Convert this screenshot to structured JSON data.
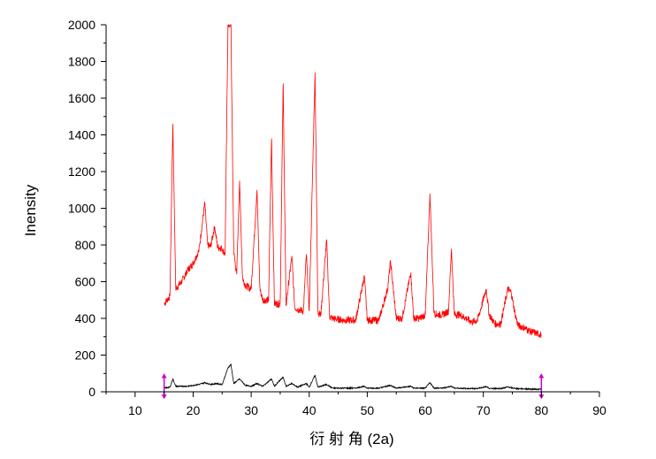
{
  "chart_data": {
    "type": "line",
    "xlabel": "衍 射 角  (2a)",
    "ylabel": "Inensity",
    "xlim": [
      5,
      90
    ],
    "ylim": [
      0,
      2000
    ],
    "x_ticks": [
      10,
      20,
      30,
      40,
      50,
      60,
      70,
      80,
      90
    ],
    "y_ticks": [
      0,
      200,
      400,
      600,
      800,
      1000,
      1200,
      1400,
      1600,
      1800,
      2000
    ],
    "grid": false,
    "legend": "none",
    "markers": [
      15,
      80
    ],
    "colors": {
      "upper": "#ff0000",
      "lower": "#000000",
      "markers": "#cc00cc"
    },
    "series": [
      {
        "color": "#ff0000",
        "x_range": [
          15,
          80
        ],
        "points": [
          [
            15.0,
            480
          ],
          [
            16.0,
            520
          ],
          [
            16.5,
            1460
          ],
          [
            17.0,
            560
          ],
          [
            18.0,
            600
          ],
          [
            19.0,
            660
          ],
          [
            20.0,
            700
          ],
          [
            21.0,
            770
          ],
          [
            22.0,
            1030
          ],
          [
            22.5,
            800
          ],
          [
            23.0,
            790
          ],
          [
            23.7,
            900
          ],
          [
            24.2,
            790
          ],
          [
            25.0,
            780
          ],
          [
            25.5,
            750
          ],
          [
            26.0,
            2000
          ],
          [
            26.5,
            2000
          ],
          [
            27.0,
            760
          ],
          [
            27.5,
            640
          ],
          [
            28.0,
            1150
          ],
          [
            28.5,
            620
          ],
          [
            29.0,
            580
          ],
          [
            30.0,
            560
          ],
          [
            31.0,
            1100
          ],
          [
            31.5,
            560
          ],
          [
            32.0,
            500
          ],
          [
            33.0,
            500
          ],
          [
            33.5,
            1380
          ],
          [
            34.0,
            480
          ],
          [
            35.0,
            480
          ],
          [
            35.5,
            1680
          ],
          [
            36.0,
            470
          ],
          [
            37.0,
            740
          ],
          [
            37.5,
            460
          ],
          [
            38.0,
            450
          ],
          [
            39.0,
            440
          ],
          [
            39.5,
            750
          ],
          [
            40.0,
            440
          ],
          [
            41.0,
            1740
          ],
          [
            41.5,
            430
          ],
          [
            42.0,
            420
          ],
          [
            43.0,
            830
          ],
          [
            43.5,
            410
          ],
          [
            44.0,
            400
          ],
          [
            46.0,
            390
          ],
          [
            48.0,
            390
          ],
          [
            49.5,
            630
          ],
          [
            50.0,
            390
          ],
          [
            52.0,
            390
          ],
          [
            53.5,
            560
          ],
          [
            54.0,
            710
          ],
          [
            55.0,
            400
          ],
          [
            56.0,
            400
          ],
          [
            57.5,
            650
          ],
          [
            58.0,
            400
          ],
          [
            59.0,
            400
          ],
          [
            60.0,
            420
          ],
          [
            60.8,
            1080
          ],
          [
            61.5,
            430
          ],
          [
            62.0,
            420
          ],
          [
            63.0,
            420
          ],
          [
            64.0,
            440
          ],
          [
            64.5,
            780
          ],
          [
            65.0,
            420
          ],
          [
            66.0,
            420
          ],
          [
            67.0,
            400
          ],
          [
            68.0,
            380
          ],
          [
            69.0,
            390
          ],
          [
            70.5,
            560
          ],
          [
            71.0,
            420
          ],
          [
            72.0,
            370
          ],
          [
            73.0,
            370
          ],
          [
            74.2,
            560
          ],
          [
            74.8,
            540
          ],
          [
            75.5,
            420
          ],
          [
            76.0,
            360
          ],
          [
            77.0,
            350
          ],
          [
            78.0,
            330
          ],
          [
            79.0,
            320
          ],
          [
            80.0,
            310
          ]
        ]
      },
      {
        "color": "#000000",
        "x_range": [
          15,
          80
        ],
        "points": [
          [
            15.0,
            20
          ],
          [
            16.0,
            25
          ],
          [
            16.5,
            70
          ],
          [
            17.0,
            30
          ],
          [
            18.0,
            30
          ],
          [
            19.0,
            30
          ],
          [
            20.0,
            35
          ],
          [
            21.0,
            40
          ],
          [
            22.0,
            50
          ],
          [
            23.0,
            40
          ],
          [
            24.0,
            45
          ],
          [
            25.0,
            40
          ],
          [
            26.0,
            130
          ],
          [
            26.5,
            150
          ],
          [
            27.0,
            45
          ],
          [
            28.0,
            70
          ],
          [
            29.0,
            35
          ],
          [
            30.0,
            30
          ],
          [
            31.0,
            45
          ],
          [
            32.0,
            30
          ],
          [
            33.5,
            70
          ],
          [
            34.0,
            30
          ],
          [
            35.5,
            80
          ],
          [
            36.0,
            30
          ],
          [
            37.0,
            45
          ],
          [
            38.0,
            25
          ],
          [
            39.5,
            45
          ],
          [
            40.0,
            25
          ],
          [
            41.0,
            90
          ],
          [
            41.5,
            25
          ],
          [
            43.0,
            40
          ],
          [
            44.0,
            20
          ],
          [
            46.0,
            20
          ],
          [
            48.0,
            20
          ],
          [
            49.5,
            30
          ],
          [
            50.0,
            20
          ],
          [
            52.0,
            20
          ],
          [
            54.0,
            35
          ],
          [
            55.0,
            20
          ],
          [
            57.5,
            30
          ],
          [
            58.0,
            20
          ],
          [
            60.0,
            20
          ],
          [
            60.8,
            50
          ],
          [
            61.5,
            20
          ],
          [
            63.0,
            20
          ],
          [
            64.5,
            30
          ],
          [
            65.0,
            20
          ],
          [
            67.0,
            18
          ],
          [
            69.0,
            18
          ],
          [
            70.5,
            28
          ],
          [
            71.0,
            18
          ],
          [
            73.0,
            18
          ],
          [
            74.2,
            26
          ],
          [
            75.5,
            18
          ],
          [
            77.0,
            16
          ],
          [
            79.0,
            14
          ],
          [
            80.0,
            14
          ]
        ]
      }
    ]
  }
}
